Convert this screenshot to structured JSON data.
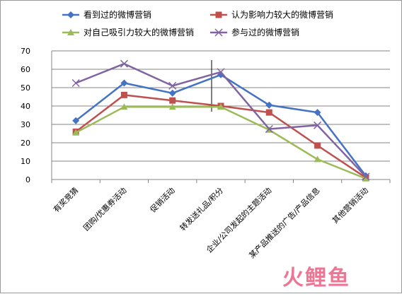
{
  "chart_data": {
    "type": "line",
    "categories": [
      "有奖竞猜",
      "团购/优惠券活动",
      "促销活动",
      "转发送礼品/积分",
      "企业/公司发起的主题活动",
      "某产品推送的广告/产品信息",
      "其他营销活动"
    ],
    "ylim": [
      0,
      70
    ],
    "yticks": [
      0,
      10,
      20,
      30,
      40,
      50,
      60,
      70
    ],
    "grid": true,
    "legend_position": "top",
    "series": [
      {
        "name": "看到过的微博营销",
        "color": "#4472c4",
        "marker": "diamond",
        "values": [
          32,
          52.5,
          47,
          57,
          40.5,
          36.5,
          2
        ]
      },
      {
        "name": "认为影响力较大的微博营销",
        "color": "#c0504d",
        "marker": "square",
        "values": [
          26,
          46,
          43,
          40,
          36.5,
          18.5,
          1
        ]
      },
      {
        "name": "对自己吸引力较大的微博营销",
        "color": "#9bbb59",
        "marker": "triangle",
        "values": [
          25.5,
          39.5,
          39.5,
          39.5,
          27,
          11,
          0.5
        ]
      },
      {
        "name": "参与过的微博营销",
        "color": "#8064a2",
        "marker": "x",
        "values": [
          52.5,
          63,
          51,
          58.5,
          27.5,
          29.5,
          1.5
        ]
      }
    ]
  },
  "watermark": {
    "text": "火鲤鱼"
  }
}
